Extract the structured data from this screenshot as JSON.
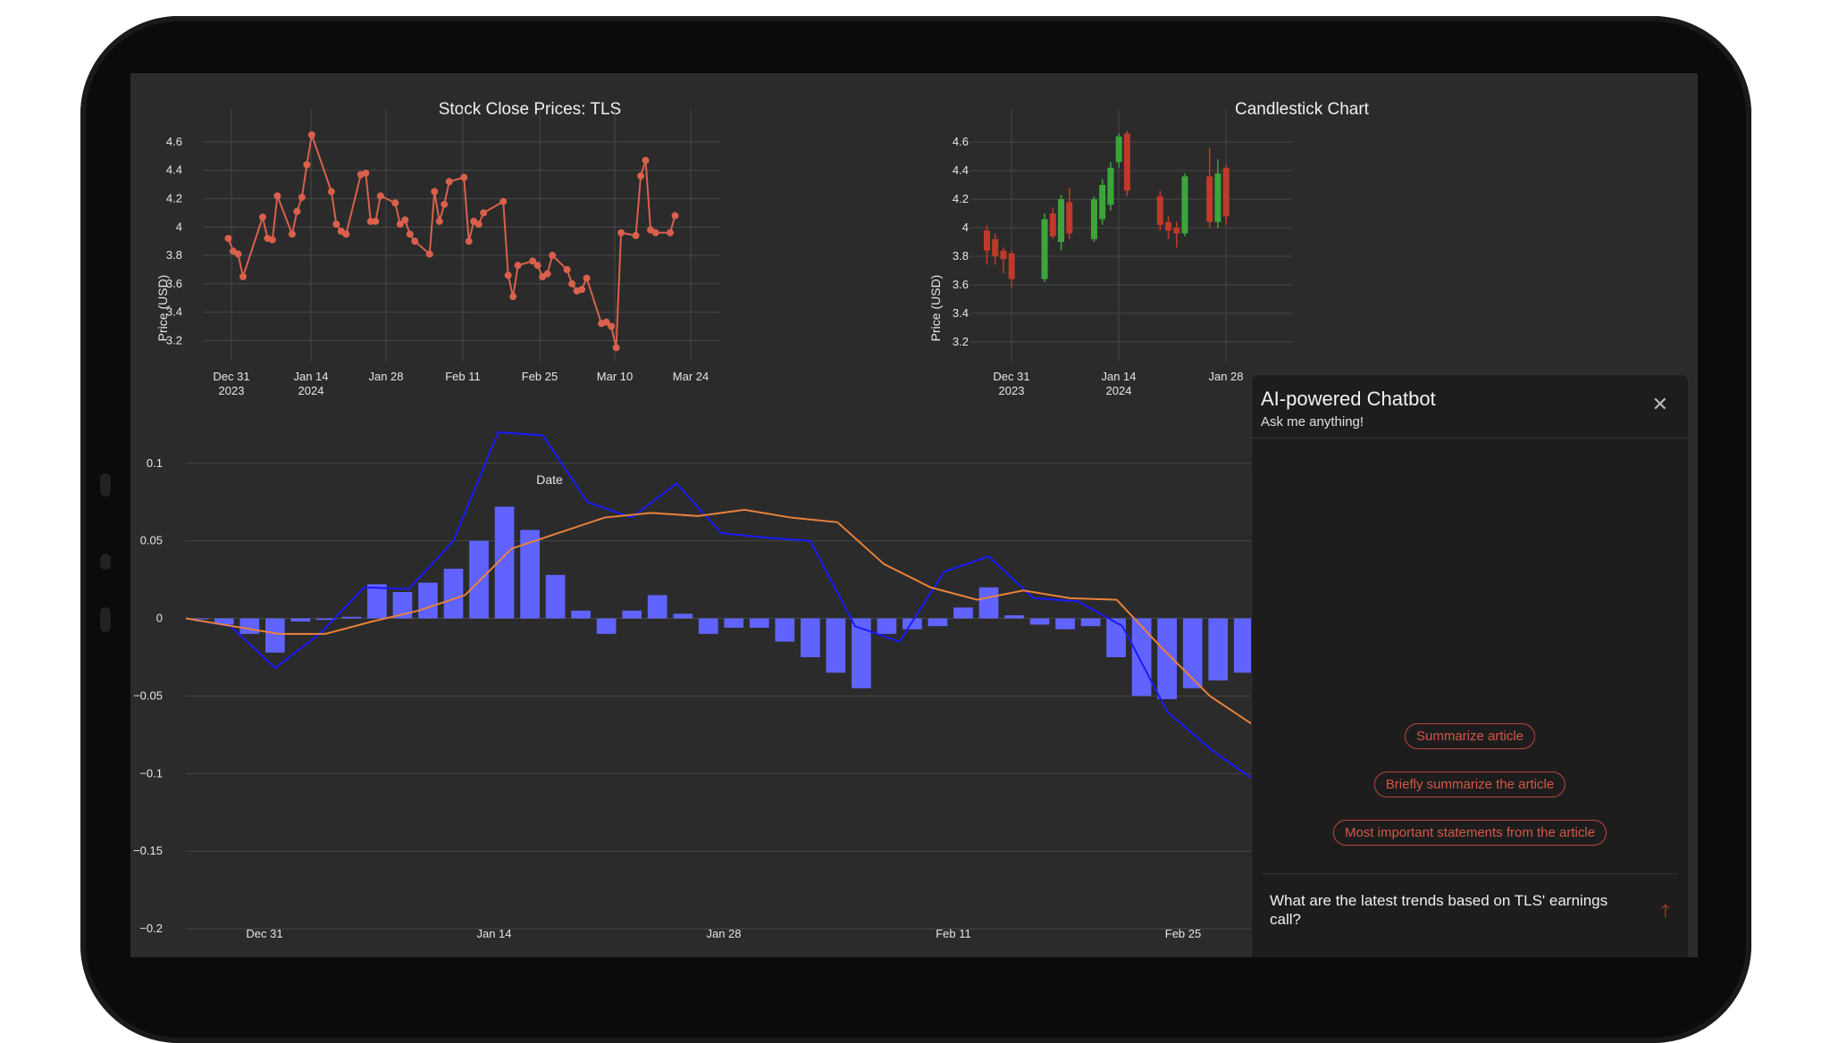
{
  "chart_data": [
    {
      "type": "line",
      "title": "Stock Close Prices: TLS",
      "xlabel": "Date",
      "ylabel": "Price (USD)",
      "x_ticks": [
        [
          "Dec 31",
          "2023"
        ],
        [
          "Jan 14",
          "2024"
        ],
        [
          "Jan 28"
        ],
        [
          "Feb 11"
        ],
        [
          "Feb 25"
        ],
        [
          "Mar 10"
        ],
        [
          "Mar 24"
        ]
      ],
      "y_ticks": [
        3.2,
        3.4,
        3.6,
        3.8,
        4.0,
        4.2,
        4.4,
        4.6
      ],
      "y_tick_labels": [
        "3.2",
        "3.4",
        "3.6",
        "3.8",
        "4",
        "4.2",
        "4.4",
        "4.6"
      ],
      "ylim": [
        3.07,
        4.82
      ],
      "xlim": [
        "2023-12-21",
        "2024-03-29"
      ],
      "color": "#d9604c",
      "x": [
        "2023-12-26",
        "2023-12-27",
        "2023-12-28",
        "2023-12-29",
        "2024-01-02",
        "2024-01-03",
        "2024-01-04",
        "2024-01-05",
        "2024-01-08",
        "2024-01-09",
        "2024-01-10",
        "2024-01-11",
        "2024-01-12",
        "2024-01-16",
        "2024-01-17",
        "2024-01-18",
        "2024-01-19",
        "2024-01-22",
        "2024-01-23",
        "2024-01-24",
        "2024-01-25",
        "2024-01-26",
        "2024-01-29",
        "2024-01-30",
        "2024-01-31",
        "2024-02-01",
        "2024-02-02",
        "2024-02-05",
        "2024-02-06",
        "2024-02-07",
        "2024-02-08",
        "2024-02-09",
        "2024-02-12",
        "2024-02-13",
        "2024-02-14",
        "2024-02-15",
        "2024-02-16",
        "2024-02-20",
        "2024-02-21",
        "2024-02-22",
        "2024-02-23",
        "2024-02-26",
        "2024-02-27",
        "2024-02-28",
        "2024-02-29",
        "2024-03-01",
        "2024-03-04",
        "2024-03-05",
        "2024-03-06",
        "2024-03-07",
        "2024-03-08",
        "2024-03-11",
        "2024-03-12",
        "2024-03-13",
        "2024-03-14",
        "2024-03-15",
        "2024-03-18",
        "2024-03-19",
        "2024-03-20",
        "2024-03-21",
        "2024-03-22",
        "2024-03-25",
        "2024-03-26"
      ],
      "values": [
        3.92,
        3.83,
        3.81,
        3.65,
        4.07,
        3.92,
        3.91,
        4.22,
        3.95,
        4.11,
        4.21,
        4.44,
        4.65,
        4.25,
        4.02,
        3.97,
        3.95,
        4.37,
        4.38,
        4.04,
        4.04,
        4.22,
        4.17,
        4.02,
        4.05,
        3.95,
        3.9,
        3.81,
        4.25,
        4.04,
        4.16,
        4.32,
        4.35,
        3.9,
        4.04,
        4.02,
        4.1,
        4.18,
        3.66,
        3.51,
        3.73,
        3.76,
        3.73,
        3.65,
        3.67,
        3.8,
        3.7,
        3.6,
        3.55,
        3.56,
        3.64,
        3.32,
        3.33,
        3.3,
        3.15,
        3.96,
        3.94,
        4.36,
        4.47,
        3.98,
        3.96,
        3.96,
        4.08
      ]
    },
    {
      "type": "candlestick",
      "title": "Candlestick Chart",
      "ylabel": "Price (USD)",
      "x_ticks": [
        [
          "Dec 31",
          "2023"
        ],
        [
          "Jan 14",
          "2024"
        ],
        [
          "Jan 28"
        ]
      ],
      "y_ticks": [
        3.2,
        3.4,
        3.6,
        3.8,
        4.0,
        4.2,
        4.4,
        4.6
      ],
      "y_tick_labels": [
        "3.2",
        "3.4",
        "3.6",
        "3.8",
        "4",
        "4.2",
        "4.4",
        "4.6"
      ],
      "ylim": [
        3.08,
        4.82
      ],
      "up_color": "#3aa63a",
      "down_color": "#c0392b",
      "candles": [
        {
          "x": "2023-12-26",
          "open": 3.98,
          "high": 4.02,
          "low": 3.74,
          "close": 3.84
        },
        {
          "x": "2023-12-27",
          "open": 3.92,
          "high": 3.96,
          "low": 3.74,
          "close": 3.8
        },
        {
          "x": "2023-12-28",
          "open": 3.84,
          "high": 3.86,
          "low": 3.68,
          "close": 3.78
        },
        {
          "x": "2023-12-29",
          "open": 3.82,
          "high": 3.84,
          "low": 3.58,
          "close": 3.64
        },
        {
          "x": "2024-01-02",
          "open": 3.64,
          "high": 4.1,
          "low": 3.62,
          "close": 4.06
        },
        {
          "x": "2024-01-03",
          "open": 4.1,
          "high": 4.14,
          "low": 3.92,
          "close": 3.94
        },
        {
          "x": "2024-01-04",
          "open": 3.9,
          "high": 4.23,
          "low": 3.84,
          "close": 4.2
        },
        {
          "x": "2024-01-05",
          "open": 4.18,
          "high": 4.28,
          "low": 3.92,
          "close": 3.96
        },
        {
          "x": "2024-01-08",
          "open": 3.92,
          "high": 4.22,
          "low": 3.9,
          "close": 4.2
        },
        {
          "x": "2024-01-09",
          "open": 4.06,
          "high": 4.34,
          "low": 4.02,
          "close": 4.3
        },
        {
          "x": "2024-01-10",
          "open": 4.16,
          "high": 4.46,
          "low": 4.12,
          "close": 4.42
        },
        {
          "x": "2024-01-11",
          "open": 4.46,
          "high": 4.66,
          "low": 4.42,
          "close": 4.64
        },
        {
          "x": "2024-01-12",
          "open": 4.66,
          "high": 4.68,
          "low": 4.22,
          "close": 4.26
        },
        {
          "x": "2024-01-16",
          "open": 4.22,
          "high": 4.26,
          "low": 3.98,
          "close": 4.02
        },
        {
          "x": "2024-01-17",
          "open": 4.04,
          "high": 4.08,
          "low": 3.92,
          "close": 3.98
        },
        {
          "x": "2024-01-18",
          "open": 4.0,
          "high": 4.04,
          "low": 3.86,
          "close": 3.96
        },
        {
          "x": "2024-01-19",
          "open": 3.96,
          "high": 4.38,
          "low": 3.94,
          "close": 4.36
        },
        {
          "x": "2024-01-22",
          "open": 4.36,
          "high": 4.56,
          "low": 4.0,
          "close": 4.04
        },
        {
          "x": "2024-01-23",
          "open": 4.04,
          "high": 4.48,
          "low": 4.0,
          "close": 4.38
        },
        {
          "x": "2024-01-24",
          "open": 4.42,
          "high": 4.44,
          "low": 4.02,
          "close": 4.08
        }
      ]
    },
    {
      "type": "bar",
      "title": "",
      "y_ticks": [
        -0.2,
        -0.15,
        -0.1,
        -0.05,
        0,
        0.05,
        0.1
      ],
      "y_tick_labels": [
        "−0.2",
        "−0.15",
        "−0.1",
        "−0.05",
        "0",
        "0.05",
        "0.1"
      ],
      "ylim": [
        -0.2,
        0.12
      ],
      "x_ticks": [
        [
          "Dec 31"
        ],
        [
          "Jan 14"
        ],
        [
          "Jan 28"
        ],
        [
          "Feb 11"
        ],
        [
          "Feb 25"
        ]
      ],
      "bar_color": "#6163ff",
      "series": [
        {
          "values": [
            0.0,
            -0.004,
            -0.01,
            -0.022,
            -0.002,
            -0.001,
            0.001,
            0.022,
            0.017,
            0.023,
            0.032,
            0.05,
            0.072,
            0.057,
            0.028,
            0.005,
            -0.01,
            0.005,
            0.015,
            0.003,
            -0.01,
            -0.006,
            -0.006,
            -0.015,
            -0.025,
            -0.035,
            -0.045,
            -0.01,
            -0.007,
            -0.005,
            0.007,
            0.02,
            0.002,
            -0.004,
            -0.007,
            -0.005,
            -0.025,
            -0.05,
            -0.052,
            -0.045,
            -0.04,
            -0.035
          ]
        },
        {
          "color": "#1a1aff",
          "values": [
            0.0,
            -0.005,
            -0.032,
            -0.01,
            0.02,
            0.019,
            0.05,
            0.12,
            0.118,
            0.075,
            0.065,
            0.087,
            0.055,
            0.052,
            0.05,
            -0.005,
            -0.015,
            0.03,
            0.04,
            0.013,
            0.011,
            -0.005,
            -0.06,
            -0.085,
            -0.105
          ]
        },
        {
          "color": "#e8823a",
          "values": [
            0.0,
            -0.005,
            -0.01,
            -0.01,
            -0.002,
            0.005,
            0.015,
            0.045,
            0.055,
            0.065,
            0.068,
            0.066,
            0.07,
            0.065,
            0.062,
            0.035,
            0.02,
            0.012,
            0.018,
            0.013,
            0.012,
            -0.02,
            -0.05,
            -0.07
          ]
        }
      ]
    }
  ],
  "chatbot": {
    "title": "AI-powered Chatbot",
    "subtitle": "Ask me anything!",
    "close_icon": "close-icon",
    "suggestions": [
      "Summarize article",
      "Briefly summarize the article",
      "Most important statements from the article"
    ],
    "question": "What are the latest trends based on TLS' earnings call?",
    "send_icon": "send-arrow-icon",
    "accent": "#c0392b"
  }
}
